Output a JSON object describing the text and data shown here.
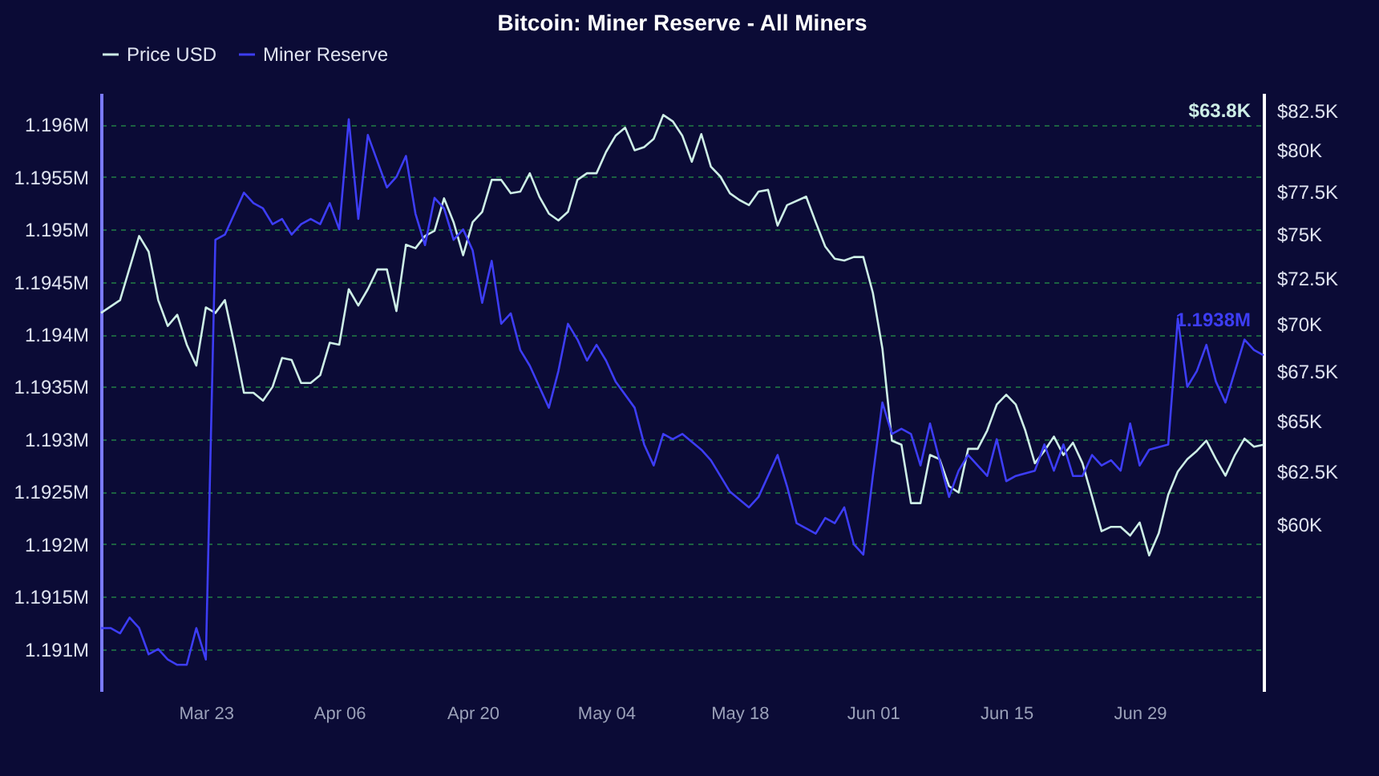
{
  "chart_data": {
    "type": "line",
    "title": "Bitcoin: Miner Reserve - All Miners",
    "series": [
      {
        "name": "Price USD",
        "color": "#cdeee6",
        "axis": "y2",
        "x": [
          "--03-12",
          "--03-14",
          "--03-16",
          "--03-17",
          "--03-18",
          "--03-19",
          "--03-20",
          "--03-21",
          "--03-22",
          "--03-23",
          "--03-24",
          "--03-25",
          "--03-26",
          "--03-27",
          "--03-28",
          "--03-29",
          "--03-30",
          "--03-31",
          "--04-01",
          "--04-02",
          "--04-03",
          "--04-04",
          "--04-05",
          "--04-06",
          "--04-07",
          "--04-08",
          "--04-09",
          "--04-10",
          "--04-11",
          "--04-12",
          "--04-13",
          "--04-14",
          "--04-15",
          "--04-16",
          "--04-17",
          "--04-18",
          "--04-19",
          "--04-20",
          "--04-21",
          "--04-22",
          "--04-23",
          "--04-24",
          "--04-25",
          "--04-26",
          "--04-27",
          "--04-28",
          "--04-29",
          "--04-30",
          "--05-01",
          "--05-02",
          "--05-03",
          "--05-04",
          "--05-05",
          "--05-06",
          "--05-07",
          "--05-08",
          "--05-09",
          "--05-10",
          "--05-11",
          "--05-12",
          "--05-13",
          "--05-14",
          "--05-15",
          "--05-16",
          "--05-17",
          "--05-18",
          "--05-19",
          "--05-20",
          "--05-21",
          "--05-22",
          "--05-23",
          "--05-25",
          "--05-26",
          "--05-27",
          "--05-28",
          "--05-29",
          "--05-30",
          "--05-31",
          "--06-01",
          "--06-02",
          "--06-03",
          "--06-04",
          "--06-05",
          "--06-06",
          "--06-07",
          "--06-08",
          "--06-09",
          "--06-10",
          "--06-11",
          "--06-12",
          "--06-13",
          "--06-14",
          "--06-15",
          "--06-16",
          "--06-17",
          "--06-18",
          "--06-19",
          "--06-20",
          "--06-21",
          "--06-22",
          "--06-23",
          "--06-24",
          "--06-25",
          "--06-26",
          "--06-27",
          "--06-28",
          "--06-29",
          "--06-30",
          "--07-01",
          "--07-02",
          "--07-03",
          "--07-04",
          "--07-05",
          "--07-06",
          "--07-07",
          "--07-08",
          "--07-09",
          "--07-10",
          "--07-11",
          "--07-12"
        ],
        "values": [
          70600,
          71300,
          74900,
          74000,
          71300,
          69900,
          70500,
          68900,
          67800,
          70900,
          70600,
          71300,
          68900,
          66400,
          66400,
          66000,
          66700,
          68200,
          68100,
          66900,
          66900,
          67300,
          69000,
          68900,
          71900,
          71000,
          71900,
          73000,
          73000,
          70700,
          74400,
          74200,
          74900,
          75200,
          77100,
          75700,
          73800,
          75700,
          76300,
          78200,
          78200,
          77400,
          77500,
          78600,
          77200,
          76200,
          75800,
          76300,
          78200,
          78600,
          78600,
          79900,
          80900,
          81400,
          80000,
          80200,
          80700,
          82200,
          81800,
          80900,
          79300,
          81000,
          79000,
          78400,
          77400,
          77000,
          76700,
          77500,
          77600,
          75500,
          76700,
          77200,
          75700,
          74300,
          73600,
          73500,
          73700,
          73700,
          71700,
          68700,
          64000,
          63800,
          61000,
          61000,
          63300,
          63100,
          61800,
          61500,
          63600,
          63600,
          64500,
          65800,
          66300,
          65800,
          64500,
          62900,
          63500,
          64200,
          63300,
          63900,
          62900,
          61300,
          59700,
          59900,
          59900,
          59500,
          60100,
          58600,
          59600,
          61400,
          62500,
          63100,
          63500,
          64000,
          63100,
          62300,
          63300,
          64100,
          63700,
          63800
        ]
      },
      {
        "name": "Miner Reserve",
        "color": "#3d3df5",
        "x": [
          "--03-12",
          "--03-13",
          "--03-14",
          "--03-15",
          "--03-16",
          "--03-17",
          "--03-18",
          "--03-19",
          "--03-20",
          "--03-21",
          "--03-22",
          "--03-23",
          "--03-24",
          "--03-25",
          "--03-26",
          "--03-27",
          "--03-28",
          "--03-29",
          "--03-30",
          "--03-31",
          "--04-01",
          "--04-02",
          "--04-03",
          "--04-04",
          "--04-05",
          "--04-06",
          "--04-07",
          "--04-08",
          "--04-09",
          "--04-10",
          "--04-11",
          "--04-12",
          "--04-13",
          "--04-14",
          "--04-15",
          "--04-16",
          "--04-17",
          "--04-18",
          "--04-19",
          "--04-20",
          "--04-21",
          "--04-22",
          "--04-23",
          "--04-24",
          "--04-25",
          "--04-26",
          "--04-27",
          "--04-28",
          "--04-29",
          "--04-30",
          "--05-01",
          "--05-02",
          "--05-03",
          "--05-04",
          "--05-05",
          "--05-07",
          "--05-08",
          "--05-09",
          "--05-10",
          "--05-11",
          "--05-12",
          "--05-14",
          "--05-15",
          "--05-17",
          "--05-19",
          "--05-20",
          "--05-22",
          "--05-23",
          "--05-24",
          "--05-26",
          "--05-27",
          "--05-28",
          "--05-29",
          "--05-30",
          "--05-31",
          "--06-01",
          "--06-02",
          "--06-03",
          "--06-04",
          "--06-05",
          "--06-06",
          "--06-07",
          "--06-08",
          "--06-09",
          "--06-10",
          "--06-11",
          "--06-12",
          "--06-13",
          "--06-14",
          "--06-15",
          "--06-16",
          "--06-18",
          "--06-19",
          "--06-20",
          "--06-21",
          "--06-22",
          "--06-23",
          "--06-24",
          "--06-25",
          "--06-26",
          "--06-27",
          "--06-28",
          "--06-29",
          "--06-30",
          "--07-02",
          "--07-03",
          "--07-04",
          "--07-05",
          "--07-06",
          "--07-07",
          "--07-08",
          "--07-09",
          "--07-10",
          "--07-11",
          "--07-12"
        ],
        "values": [
          1191200,
          1191200,
          1191150,
          1191300,
          1191200,
          1190950,
          1191000,
          1190900,
          1190850,
          1190850,
          1191200,
          1190900,
          1194900,
          1194950,
          1195150,
          1195350,
          1195250,
          1195200,
          1195050,
          1195100,
          1194950,
          1195050,
          1195100,
          1195050,
          1195250,
          1195000,
          1196050,
          1195100,
          1195900,
          1195650,
          1195400,
          1195500,
          1195700,
          1195150,
          1194850,
          1195300,
          1195200,
          1194900,
          1195000,
          1194800,
          1194300,
          1194700,
          1194100,
          1194200,
          1193850,
          1193700,
          1193500,
          1193300,
          1193650,
          1194100,
          1193950,
          1193750,
          1193900,
          1193750,
          1193550,
          1193300,
          1192950,
          1192750,
          1193050,
          1193000,
          1193050,
          1192900,
          1192800,
          1192500,
          1192350,
          1192450,
          1192850,
          1192550,
          1192200,
          1192100,
          1192250,
          1192200,
          1192350,
          1192000,
          1191900,
          1192650,
          1193350,
          1193050,
          1193100,
          1193050,
          1192750,
          1193150,
          1192800,
          1192450,
          1192700,
          1192850,
          1192750,
          1192650,
          1193000,
          1192600,
          1192650,
          1192700,
          1192950,
          1192700,
          1192950,
          1192650,
          1192650,
          1192850,
          1192750,
          1192800,
          1192700,
          1193150,
          1192750,
          1192900,
          1192950,
          1194150,
          1193500,
          1193650,
          1193900,
          1193550,
          1193350,
          1193650,
          1193950,
          1193850,
          1193800
        ]
      }
    ],
    "xlim": [
      "--03-12",
      "--07-12"
    ],
    "xticks": [
      {
        "value": "--03-23",
        "label": "Mar 23"
      },
      {
        "value": "--04-06",
        "label": "Apr 06"
      },
      {
        "value": "--04-20",
        "label": "Apr 20"
      },
      {
        "value": "--05-04",
        "label": "May 04"
      },
      {
        "value": "--05-18",
        "label": "May 18"
      },
      {
        "value": "--06-01",
        "label": "Jun 01"
      },
      {
        "value": "--06-15",
        "label": "Jun 15"
      },
      {
        "value": "--06-29",
        "label": "Jun 29"
      }
    ],
    "ylim": [
      1190600,
      1196300
    ],
    "yticks": [
      {
        "value": 1191000,
        "label": "1.191M"
      },
      {
        "value": 1191500,
        "label": "1.1915M"
      },
      {
        "value": 1192000,
        "label": "1.192M"
      },
      {
        "value": 1192500,
        "label": "1.1925M"
      },
      {
        "value": 1193000,
        "label": "1.193M"
      },
      {
        "value": 1193500,
        "label": "1.1935M"
      },
      {
        "value": 1194000,
        "label": "1.194M"
      },
      {
        "value": 1194500,
        "label": "1.1945M"
      },
      {
        "value": 1195000,
        "label": "1.195M"
      },
      {
        "value": 1195500,
        "label": "1.1955M"
      },
      {
        "value": 1196000,
        "label": "1.196M"
      }
    ],
    "y2lim": [
      52800,
      83600
    ],
    "y2ticks": [
      {
        "value": 60000,
        "label": "$60K"
      },
      {
        "value": 62500,
        "label": "$62.5K"
      },
      {
        "value": 65000,
        "label": "$65K"
      },
      {
        "value": 67500,
        "label": "$67.5K"
      },
      {
        "value": 70000,
        "label": "$70K"
      },
      {
        "value": 72500,
        "label": "$72.5K"
      },
      {
        "value": 75000,
        "label": "$75K"
      },
      {
        "value": 77500,
        "label": "$77.5K"
      },
      {
        "value": 80000,
        "label": "$80K"
      },
      {
        "value": 82500,
        "label": "$82.5K"
      }
    ],
    "log": "y2",
    "annotations": [
      {
        "text": "1.1938M",
        "x": "--07-12",
        "y": 1193800
      },
      "$63.8K"
    ],
    "grid": "y",
    "legend": "top",
    "line_style": "solid"
  }
}
